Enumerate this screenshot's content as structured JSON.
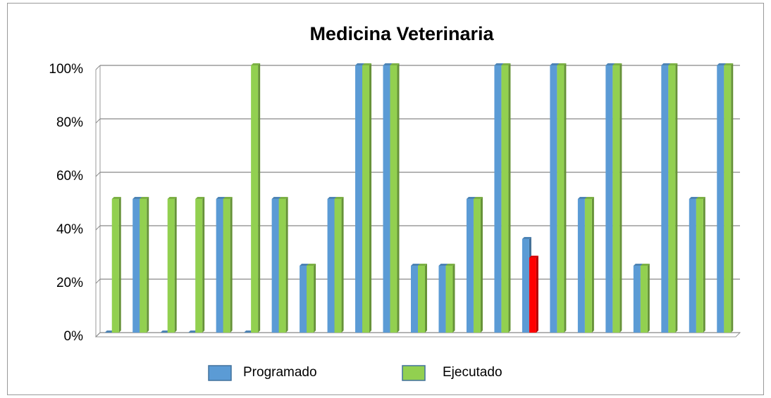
{
  "chart_data": {
    "type": "bar",
    "title": "Medicina Veterinaria",
    "categories": [
      null,
      null,
      null,
      null,
      null,
      null,
      null,
      null,
      null,
      null,
      null,
      null,
      null,
      null,
      null,
      null,
      null,
      null,
      null,
      null,
      null,
      null,
      null
    ],
    "series": [
      {
        "name": "Programado",
        "color": "#5b9bd5",
        "values": [
          0,
          50,
          0,
          0,
          50,
          0,
          50,
          25,
          50,
          100,
          100,
          25,
          25,
          50,
          100,
          35,
          100,
          50,
          100,
          25,
          100,
          50,
          100
        ]
      },
      {
        "name": "Ejecutado",
        "color": "#92d050",
        "values": [
          50,
          50,
          50,
          50,
          50,
          100,
          50,
          25,
          50,
          100,
          100,
          25,
          25,
          50,
          100,
          28,
          100,
          50,
          100,
          25,
          100,
          50,
          100
        ]
      }
    ],
    "highlights": [
      {
        "series": 1,
        "index": 15,
        "color": "#ff0000"
      }
    ],
    "ylim": [
      0,
      100
    ],
    "yticks": [
      {
        "value": 0,
        "label": "0%"
      },
      {
        "value": 20,
        "label": "20%"
      },
      {
        "value": 40,
        "label": "40%"
      },
      {
        "value": 60,
        "label": "60%"
      },
      {
        "value": 80,
        "label": "80%"
      },
      {
        "value": 100,
        "label": "100%"
      }
    ],
    "grid": true,
    "legend": "bottom"
  }
}
